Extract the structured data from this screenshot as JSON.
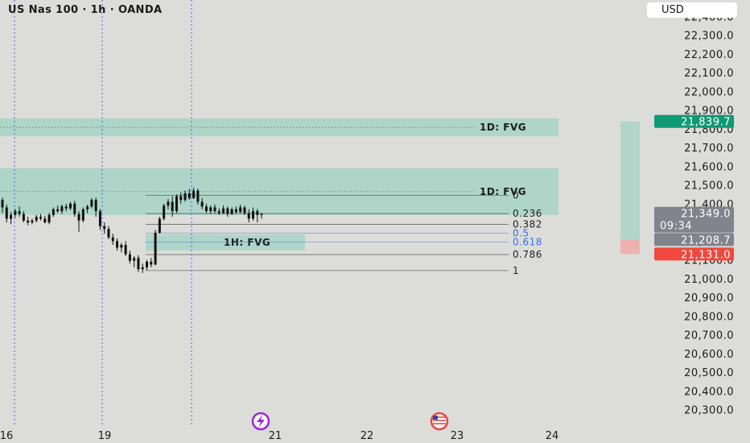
{
  "header": {
    "title": "US Nas 100 · 1h · OANDA"
  },
  "currency_button": {
    "label": "USD"
  },
  "colors": {
    "background": "#dcdcd9",
    "fvg_zone": "#a6d4c4",
    "current_price_badge": "#81848c",
    "green_badge": "#0f9a74",
    "red_badge": "#f0483e",
    "fib_blue": "#3d6fe8",
    "vertical_marker": "#3a6fe0"
  },
  "chart_data": {
    "type": "candlestick",
    "symbol": "US Nas 100",
    "interval": "1h",
    "source": "OANDA",
    "ylim": [
      20300,
      22420
    ],
    "y_ticks": [
      "22,400.0",
      "22,300.0",
      "22,200.0",
      "22,100.0",
      "22,000.0",
      "21,900.0",
      "21,800.0",
      "21,700.0",
      "21,600.0",
      "21,500.0",
      "21,400.0",
      "21,300.0",
      "21,200.0",
      "21,100.0",
      "21,000.0",
      "20,900.0",
      "20,800.0",
      "20,700.0",
      "20,600.0",
      "20,500.0",
      "20,400.0",
      "20,300.0"
    ],
    "x_ticks": [
      "16",
      "19",
      "21",
      "22",
      "23",
      "24"
    ],
    "price_badges": [
      {
        "id": "high-badge",
        "value": "21,839.7",
        "color": "#0f9a74"
      },
      {
        "id": "current-badge",
        "value": "21,349.0",
        "countdown": "09:34",
        "color": "#81848c"
      },
      {
        "id": "open-badge",
        "value": "21,208.7",
        "color": "#81848c"
      },
      {
        "id": "low-badge",
        "value": "21,131.0",
        "color": "#f0483e"
      }
    ],
    "fvg_zones": [
      {
        "label": "1D: FVG",
        "top": 21855,
        "bottom": 21760,
        "mid": 21808
      },
      {
        "label": "1D: FVG",
        "top": 21590,
        "bottom": 21340,
        "mid": 21465
      },
      {
        "label": "1H: FVG",
        "top": 21235,
        "bottom": 21150,
        "mid": 21192
      }
    ],
    "fib_levels": [
      {
        "label": "0",
        "price": 21444
      },
      {
        "label": "0.236",
        "price": 21347
      },
      {
        "label": "0.382",
        "price": 21290
      },
      {
        "label": "0.5",
        "price": 21242
      },
      {
        "label": "0.618",
        "price": 21195
      },
      {
        "label": "0.786",
        "price": 21128
      },
      {
        "label": "1",
        "price": 21043
      }
    ],
    "candles": [
      [
        21420,
        21432,
        21350,
        21380
      ],
      [
        21380,
        21395,
        21300,
        21320
      ],
      [
        21320,
        21355,
        21290,
        21340
      ],
      [
        21340,
        21372,
        21325,
        21360
      ],
      [
        21360,
        21385,
        21330,
        21345
      ],
      [
        21345,
        21360,
        21300,
        21310
      ],
      [
        21310,
        21330,
        21285,
        21300
      ],
      [
        21300,
        21320,
        21290,
        21310
      ],
      [
        21310,
        21340,
        21300,
        21330
      ],
      [
        21330,
        21345,
        21310,
        21320
      ],
      [
        21320,
        21335,
        21295,
        21300
      ],
      [
        21300,
        21350,
        21290,
        21340
      ],
      [
        21340,
        21380,
        21330,
        21370
      ],
      [
        21370,
        21390,
        21350,
        21360
      ],
      [
        21360,
        21395,
        21345,
        21385
      ],
      [
        21385,
        21400,
        21360,
        21375
      ],
      [
        21375,
        21410,
        21365,
        21400
      ],
      [
        21400,
        21415,
        21330,
        21345
      ],
      [
        21345,
        21360,
        21250,
        21310
      ],
      [
        21310,
        21380,
        21300,
        21370
      ],
      [
        21370,
        21395,
        21350,
        21385
      ],
      [
        21385,
        21430,
        21375,
        21420
      ],
      [
        21420,
        21432,
        21330,
        21360
      ],
      [
        21360,
        21372,
        21260,
        21280
      ],
      [
        21280,
        21300,
        21240,
        21265
      ],
      [
        21265,
        21280,
        21210,
        21220
      ],
      [
        21220,
        21240,
        21180,
        21200
      ],
      [
        21200,
        21215,
        21150,
        21165
      ],
      [
        21165,
        21190,
        21140,
        21180
      ],
      [
        21180,
        21200,
        21120,
        21130
      ],
      [
        21130,
        21150,
        21080,
        21095
      ],
      [
        21095,
        21120,
        21060,
        21110
      ],
      [
        21110,
        21125,
        21035,
        21050
      ],
      [
        21050,
        21080,
        21030,
        21060
      ],
      [
        21060,
        21100,
        21045,
        21090
      ],
      [
        21090,
        21110,
        21060,
        21075
      ],
      [
        21075,
        21260,
        21070,
        21245
      ],
      [
        21245,
        21330,
        21240,
        21320
      ],
      [
        21320,
        21400,
        21310,
        21390
      ],
      [
        21390,
        21425,
        21370,
        21410
      ],
      [
        21410,
        21440,
        21330,
        21360
      ],
      [
        21360,
        21450,
        21350,
        21440
      ],
      [
        21440,
        21460,
        21400,
        21420
      ],
      [
        21420,
        21470,
        21410,
        21455
      ],
      [
        21455,
        21480,
        21420,
        21430
      ],
      [
        21430,
        21485,
        21425,
        21470
      ],
      [
        21470,
        21480,
        21395,
        21410
      ],
      [
        21410,
        21430,
        21370,
        21385
      ],
      [
        21385,
        21400,
        21350,
        21360
      ],
      [
        21360,
        21390,
        21345,
        21380
      ],
      [
        21380,
        21395,
        21350,
        21360
      ],
      [
        21360,
        21375,
        21340,
        21350
      ],
      [
        21350,
        21390,
        21345,
        21375
      ],
      [
        21375,
        21385,
        21330,
        21345
      ],
      [
        21345,
        21380,
        21340,
        21370
      ],
      [
        21370,
        21385,
        21345,
        21355
      ],
      [
        21355,
        21395,
        21350,
        21380
      ],
      [
        21380,
        21390,
        21340,
        21350
      ],
      [
        21350,
        21370,
        21300,
        21320
      ],
      [
        21320,
        21380,
        21310,
        21360
      ],
      [
        21360,
        21372,
        21300,
        21340
      ],
      [
        21340,
        21350,
        21320,
        21345
      ]
    ],
    "vertical_markers": [
      "16",
      "19",
      "20"
    ],
    "event_icons": [
      {
        "name": "lightning-event-icon",
        "near_tick": "21"
      },
      {
        "name": "us-flag-event-icon",
        "near_tick": "23"
      }
    ],
    "volume_profile": {
      "green_top": 21839.7,
      "green_bottom": 21208.7,
      "red_top": 21208.7,
      "red_bottom": 21131.0
    }
  }
}
